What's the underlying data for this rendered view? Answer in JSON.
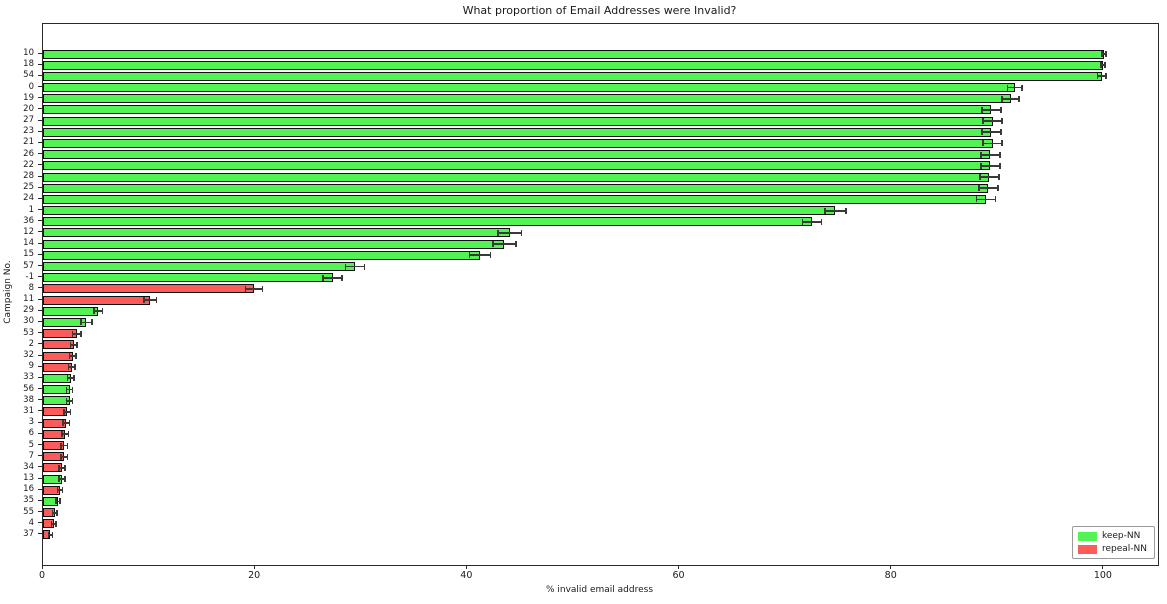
{
  "figure": {
    "title": "What proportion of Email Addresses were Invalid?",
    "xlabel": "% invalid email address",
    "ylabel": "Campaign No."
  },
  "chart_data": {
    "type": "bar",
    "orientation": "horizontal",
    "title": "What proportion of Email Addresses were Invalid?",
    "xlabel": "% invalid email address",
    "ylabel": "Campaign No.",
    "xlim": [
      0,
      105.1
    ],
    "xticks": [
      0,
      20,
      40,
      60,
      80,
      100
    ],
    "grid": false,
    "legend_position": "lower right",
    "legend": [
      {
        "label": "keep-NN",
        "color": "#54f354"
      },
      {
        "label": "repeal-NN",
        "color": "#fb5b5b"
      }
    ],
    "error_bar_color": "#3a3a3a",
    "bar_edge_color": "#101010",
    "bars": [
      {
        "campaign": "10",
        "value": 100.0,
        "error": 0.2,
        "series": "keep-NN"
      },
      {
        "campaign": "18",
        "value": 99.9,
        "error": 0.2,
        "series": "keep-NN"
      },
      {
        "campaign": "54",
        "value": 99.8,
        "error": 0.4,
        "series": "keep-NN"
      },
      {
        "campaign": "0",
        "value": 91.6,
        "error": 0.7,
        "series": "keep-NN"
      },
      {
        "campaign": "19",
        "value": 91.2,
        "error": 0.8,
        "series": "keep-NN"
      },
      {
        "campaign": "20",
        "value": 89.4,
        "error": 0.9,
        "series": "keep-NN"
      },
      {
        "campaign": "27",
        "value": 89.5,
        "error": 0.9,
        "series": "keep-NN"
      },
      {
        "campaign": "23",
        "value": 89.4,
        "error": 0.9,
        "series": "keep-NN"
      },
      {
        "campaign": "21",
        "value": 89.5,
        "error": 0.9,
        "series": "keep-NN"
      },
      {
        "campaign": "26",
        "value": 89.3,
        "error": 0.9,
        "series": "keep-NN"
      },
      {
        "campaign": "22",
        "value": 89.3,
        "error": 0.9,
        "series": "keep-NN"
      },
      {
        "campaign": "28",
        "value": 89.2,
        "error": 0.9,
        "series": "keep-NN"
      },
      {
        "campaign": "25",
        "value": 89.1,
        "error": 0.9,
        "series": "keep-NN"
      },
      {
        "campaign": "24",
        "value": 88.9,
        "error": 0.9,
        "series": "keep-NN"
      },
      {
        "campaign": "1",
        "value": 74.7,
        "error": 1.0,
        "series": "keep-NN"
      },
      {
        "campaign": "36",
        "value": 72.5,
        "error": 0.9,
        "series": "keep-NN"
      },
      {
        "campaign": "12",
        "value": 44.0,
        "error": 1.1,
        "series": "keep-NN"
      },
      {
        "campaign": "14",
        "value": 43.5,
        "error": 1.1,
        "series": "keep-NN"
      },
      {
        "campaign": "15",
        "value": 41.2,
        "error": 1.0,
        "series": "keep-NN"
      },
      {
        "campaign": "57",
        "value": 29.4,
        "error": 0.9,
        "series": "keep-NN"
      },
      {
        "campaign": "-1",
        "value": 27.3,
        "error": 0.9,
        "series": "keep-NN"
      },
      {
        "campaign": "8",
        "value": 19.9,
        "error": 0.8,
        "series": "repeal-NN"
      },
      {
        "campaign": "11",
        "value": 10.1,
        "error": 0.6,
        "series": "repeal-NN"
      },
      {
        "campaign": "29",
        "value": 5.2,
        "error": 0.4,
        "series": "keep-NN"
      },
      {
        "campaign": "30",
        "value": 4.1,
        "error": 0.5,
        "series": "keep-NN"
      },
      {
        "campaign": "53",
        "value": 3.2,
        "error": 0.4,
        "series": "repeal-NN"
      },
      {
        "campaign": "2",
        "value": 2.9,
        "error": 0.3,
        "series": "repeal-NN"
      },
      {
        "campaign": "32",
        "value": 2.8,
        "error": 0.3,
        "series": "repeal-NN"
      },
      {
        "campaign": "9",
        "value": 2.7,
        "error": 0.3,
        "series": "repeal-NN"
      },
      {
        "campaign": "33",
        "value": 2.6,
        "error": 0.3,
        "series": "keep-NN"
      },
      {
        "campaign": "56",
        "value": 2.5,
        "error": 0.3,
        "series": "keep-NN"
      },
      {
        "campaign": "38",
        "value": 2.5,
        "error": 0.3,
        "series": "keep-NN"
      },
      {
        "campaign": "31",
        "value": 2.3,
        "error": 0.3,
        "series": "repeal-NN"
      },
      {
        "campaign": "3",
        "value": 2.2,
        "error": 0.3,
        "series": "repeal-NN"
      },
      {
        "campaign": "6",
        "value": 2.1,
        "error": 0.3,
        "series": "repeal-NN"
      },
      {
        "campaign": "5",
        "value": 2.0,
        "error": 0.3,
        "series": "repeal-NN"
      },
      {
        "campaign": "7",
        "value": 2.0,
        "error": 0.3,
        "series": "repeal-NN"
      },
      {
        "campaign": "34",
        "value": 1.8,
        "error": 0.3,
        "series": "repeal-NN"
      },
      {
        "campaign": "13",
        "value": 1.8,
        "error": 0.3,
        "series": "keep-NN"
      },
      {
        "campaign": "16",
        "value": 1.6,
        "error": 0.25,
        "series": "repeal-NN"
      },
      {
        "campaign": "35",
        "value": 1.4,
        "error": 0.2,
        "series": "keep-NN"
      },
      {
        "campaign": "55",
        "value": 1.1,
        "error": 0.2,
        "series": "repeal-NN"
      },
      {
        "campaign": "4",
        "value": 1.0,
        "error": 0.2,
        "series": "repeal-NN"
      },
      {
        "campaign": "37",
        "value": 0.7,
        "error": 0.2,
        "series": "repeal-NN"
      }
    ]
  }
}
